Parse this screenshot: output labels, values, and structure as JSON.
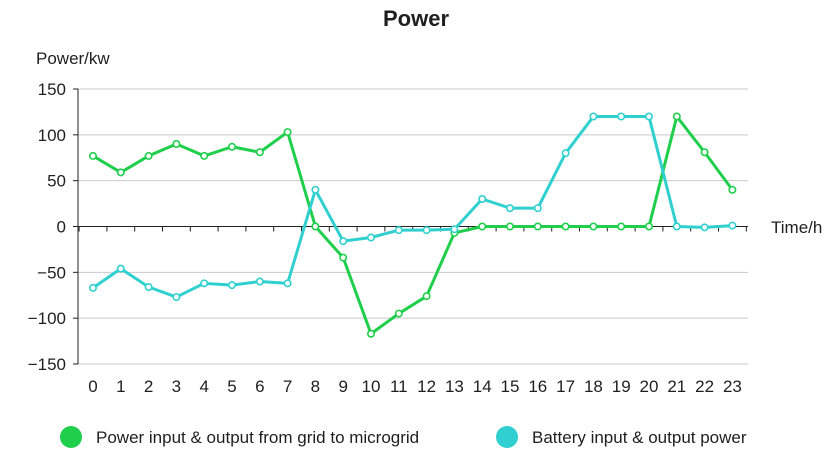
{
  "chart_data": {
    "type": "line",
    "title": "Power",
    "xlabel": "Time/h",
    "ylabel": "Power/kw",
    "x": [
      0,
      1,
      2,
      3,
      4,
      5,
      6,
      7,
      8,
      9,
      10,
      11,
      12,
      13,
      14,
      15,
      16,
      17,
      18,
      19,
      20,
      21,
      22,
      23
    ],
    "xticks": [
      "0",
      "1",
      "2",
      "3",
      "4",
      "5",
      "6",
      "7",
      "8",
      "9",
      "10",
      "11",
      "12",
      "13",
      "14",
      "15",
      "16",
      "17",
      "18",
      "19",
      "20",
      "21",
      "22",
      "23"
    ],
    "ylim": [
      -150,
      150
    ],
    "yticks": [
      150,
      100,
      50,
      0,
      -50,
      -100,
      -150
    ],
    "ytick_labels": [
      "150",
      "100",
      "50",
      "0",
      "−50",
      "−100",
      "−150"
    ],
    "grid": true,
    "legend_position": "bottom",
    "series": [
      {
        "name": "Power input & output from grid to microgrid",
        "color": "#1fcf4c",
        "values": [
          77,
          59,
          77,
          90,
          77,
          87,
          81,
          103,
          0,
          -34,
          -117,
          -95,
          -76,
          -7,
          0,
          0,
          0,
          0,
          0,
          0,
          0,
          120,
          81,
          40
        ]
      },
      {
        "name": "Battery input & output power",
        "color": "#2fd0cf",
        "values": [
          -67,
          -46,
          -66,
          -77,
          -62,
          -64,
          -60,
          -62,
          40,
          -16,
          -12,
          -4,
          -4,
          -3,
          30,
          20,
          20,
          80,
          120,
          120,
          120,
          0,
          -1,
          1
        ]
      }
    ]
  }
}
